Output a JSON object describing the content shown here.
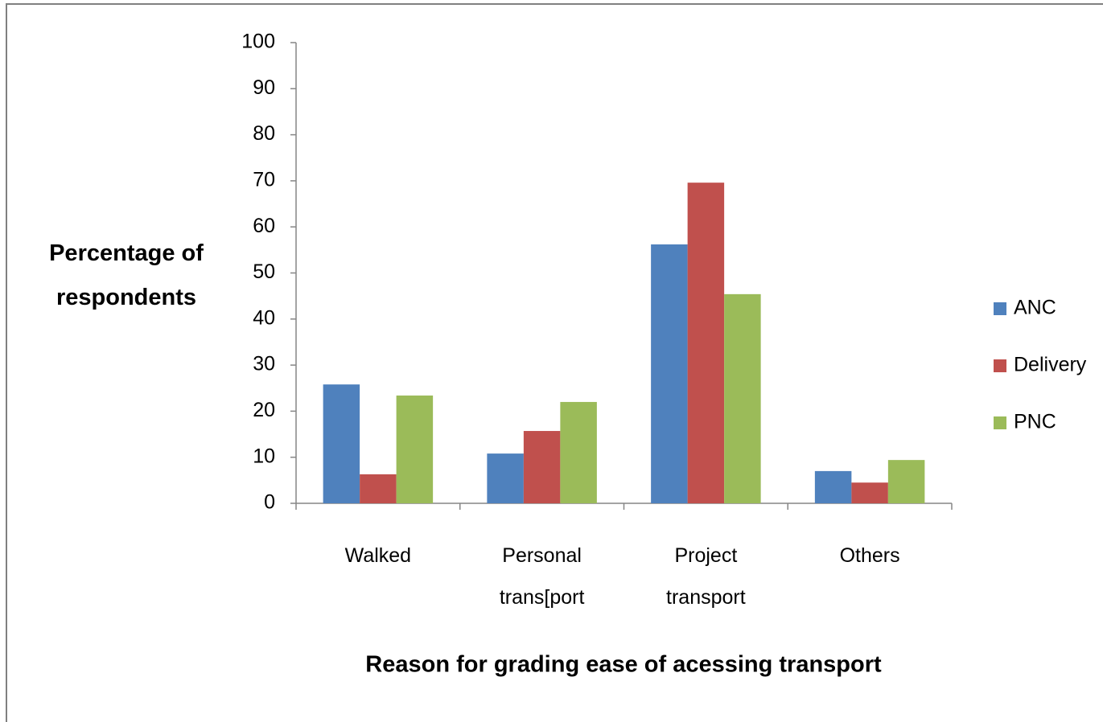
{
  "chart_data": {
    "type": "bar",
    "x_label": "Reason for grading ease of acessing transport",
    "y_label": "Percentage of respondents",
    "categories": [
      "Walked",
      "Personal trans[port",
      "Project transport",
      "Others"
    ],
    "series": [
      {
        "name": "ANC",
        "color": "#4f81bd",
        "values": [
          25.8,
          10.8,
          56.2,
          7
        ]
      },
      {
        "name": "Delivery",
        "color": "#c0504d",
        "values": [
          6.3,
          15.7,
          69.6,
          4.5
        ]
      },
      {
        "name": "PNC",
        "color": "#9bbb59",
        "values": [
          23.4,
          22,
          45.4,
          9.4
        ]
      }
    ],
    "ylim": [
      0,
      100
    ],
    "yticks": [
      0,
      10,
      20,
      30,
      40,
      50,
      60,
      70,
      80,
      90,
      100
    ],
    "grid": false,
    "legend": "right"
  }
}
